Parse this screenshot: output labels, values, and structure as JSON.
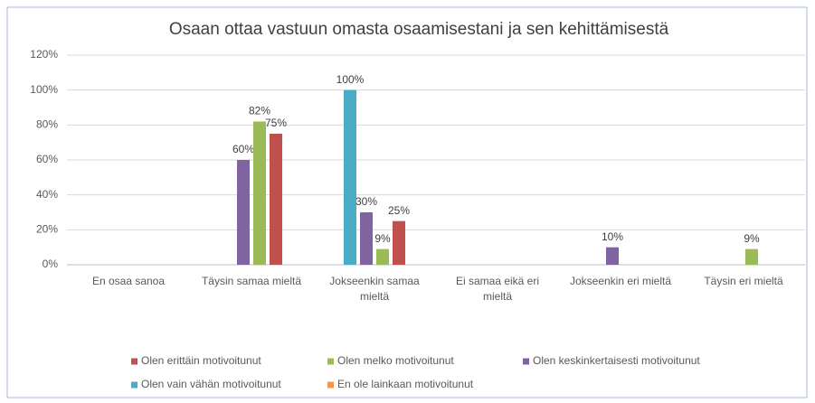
{
  "chart_data": {
    "type": "bar",
    "title": "Osaan ottaa vastuun omasta osaamisestani ja sen kehittämisestä",
    "categories": [
      "En osaa sanoa",
      "Täysin samaa mieltä",
      "Jokseenkin samaa mieltä",
      "Ei samaa eikä eri mieltä",
      "Jokseenkin eri mieltä",
      "Täysin eri mieltä"
    ],
    "series": [
      {
        "name": "Olen erittäin motivoitunut",
        "color": "#c0504d",
        "values": [
          null,
          75,
          25,
          null,
          null,
          null
        ],
        "value_labels": [
          null,
          "75%",
          "25%",
          null,
          null,
          null
        ]
      },
      {
        "name": "Olen melko motivoitunut",
        "color": "#9bbb59",
        "values": [
          null,
          82,
          9,
          null,
          null,
          9
        ],
        "value_labels": [
          null,
          "82%",
          "9%",
          null,
          null,
          "9%"
        ]
      },
      {
        "name": "Olen keskinkertaisesti motivoitunut",
        "color": "#8064a2",
        "values": [
          null,
          60,
          30,
          null,
          10,
          null
        ],
        "value_labels": [
          null,
          "60%",
          "30%",
          null,
          "10%",
          null
        ]
      },
      {
        "name": "Olen vain vähän motivoitunut",
        "color": "#4bacc6",
        "values": [
          null,
          null,
          100,
          null,
          null,
          null
        ],
        "value_labels": [
          null,
          null,
          "100%",
          null,
          null,
          null
        ]
      },
      {
        "name": "En ole lainkaan motivoitunut",
        "color": "#f79646",
        "values": [
          null,
          null,
          null,
          null,
          null,
          null
        ]
      }
    ],
    "ylim": [
      0,
      120
    ],
    "yticks": [
      {
        "value": 0,
        "label": "0%"
      },
      {
        "value": 20,
        "label": "20%"
      },
      {
        "value": 40,
        "label": "40%"
      },
      {
        "value": 60,
        "label": "60%"
      },
      {
        "value": 80,
        "label": "80%"
      },
      {
        "value": 100,
        "label": "100%"
      },
      {
        "value": 120,
        "label": "120%"
      }
    ],
    "grid": true
  }
}
